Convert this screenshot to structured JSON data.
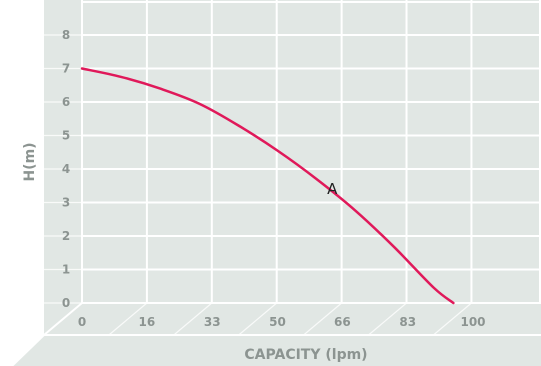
{
  "chart_data": {
    "type": "line",
    "title": "",
    "xlabel": "CAPACITY (lpm)",
    "ylabel": "H(m)",
    "x_ticks": [
      "0",
      "16",
      "33",
      "50",
      "66",
      "83",
      "100"
    ],
    "y_ticks": [
      "0",
      "1",
      "2",
      "3",
      "4",
      "5",
      "6",
      "7",
      "8"
    ],
    "xlim": [
      0,
      116
    ],
    "ylim": [
      0,
      9
    ],
    "grid": true,
    "legend": "none",
    "series": [
      {
        "x": [
          0,
          10,
          20,
          30,
          40,
          50,
          60,
          70,
          80,
          90,
          95
        ],
        "y": [
          7.0,
          6.75,
          6.4,
          5.95,
          5.3,
          4.55,
          3.7,
          2.75,
          1.65,
          0.45,
          0.0
        ],
        "color": "#e0195a"
      }
    ],
    "annotations": [
      {
        "text": "A",
        "x": 64,
        "y": 3.4
      }
    ],
    "colors": {
      "plot_background": "#e1e7e4",
      "grid": "#ffffff",
      "text": "#8c9491"
    }
  }
}
